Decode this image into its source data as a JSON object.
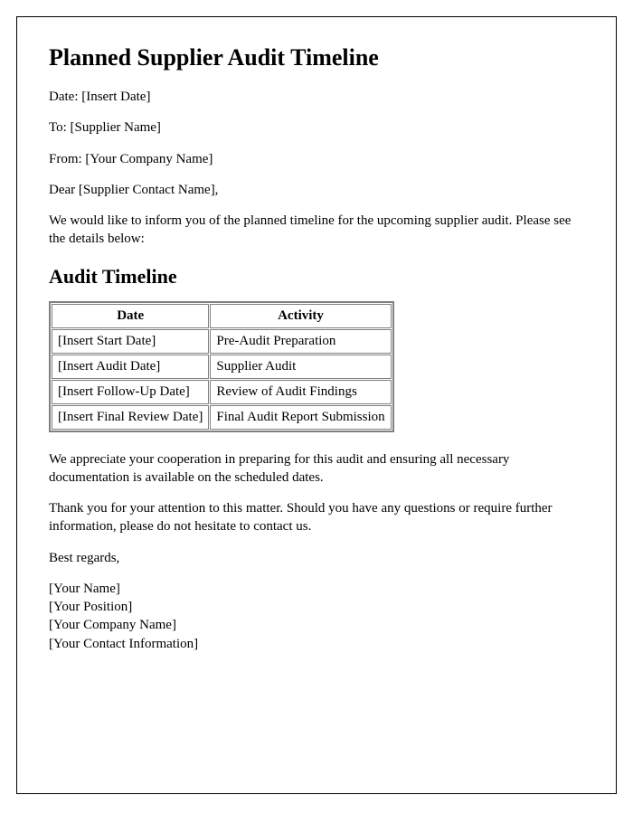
{
  "title": "Planned Supplier Audit Timeline",
  "date_line": "Date: [Insert Date]",
  "to_line": "To: [Supplier Name]",
  "from_line": "From: [Your Company Name]",
  "salutation": "Dear [Supplier Contact Name],",
  "intro_paragraph": "We would like to inform you of the planned timeline for the upcoming supplier audit. Please see the details below:",
  "subheading": "Audit Timeline",
  "table": {
    "headers": [
      "Date",
      "Activity"
    ],
    "rows": [
      [
        "[Insert Start Date]",
        "Pre-Audit Preparation"
      ],
      [
        "[Insert Audit Date]",
        "Supplier Audit"
      ],
      [
        "[Insert Follow-Up Date]",
        "Review of Audit Findings"
      ],
      [
        "[Insert Final Review Date]",
        "Final Audit Report Submission"
      ]
    ]
  },
  "cooperation_paragraph": "We appreciate your cooperation in preparing for this audit and ensuring all necessary documentation is available on the scheduled dates.",
  "closing_paragraph": "Thank you for your attention to this matter. Should you have any questions or require further information, please do not hesitate to contact us.",
  "signoff": "Best regards,",
  "signature": {
    "name": "[Your Name]",
    "position": "[Your Position]",
    "company": "[Your Company Name]",
    "contact": "[Your Contact Information]"
  },
  "styling": {
    "font_family": "Times New Roman",
    "border_color": "#000000",
    "table_border_color": "#808080",
    "background_color": "#ffffff",
    "text_color": "#000000",
    "h1_fontsize": 26,
    "h2_fontsize": 22,
    "body_fontsize": 15
  }
}
